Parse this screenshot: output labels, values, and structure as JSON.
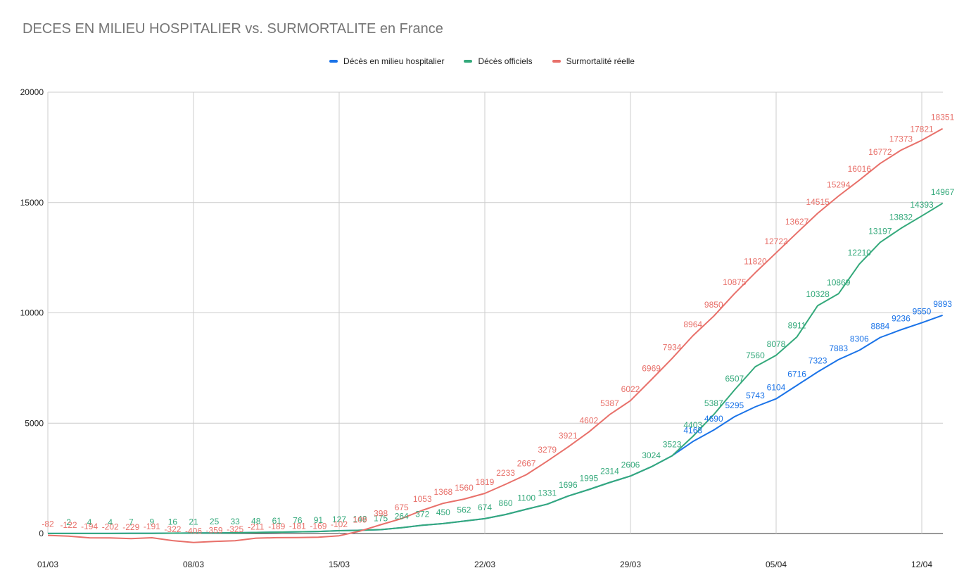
{
  "chart_data": {
    "type": "line",
    "title": "DECES EN MILIEU HOSPITALIER vs. SURMORTALITE en France",
    "ylim": [
      -500,
      20000
    ],
    "yticks": [
      "20000",
      "15000",
      "10000",
      "5000",
      "0"
    ],
    "ytick_values": [
      20000,
      15000,
      10000,
      5000,
      0
    ],
    "xticks": [
      "01/03",
      "08/03",
      "15/03",
      "22/03",
      "29/03",
      "05/04",
      "12/04"
    ],
    "xtick_index": [
      0,
      7,
      14,
      21,
      28,
      35,
      42
    ],
    "grid": true,
    "legend_position": "top",
    "x": [
      "01/03",
      "02/03",
      "03/03",
      "04/03",
      "05/03",
      "06/03",
      "07/03",
      "08/03",
      "09/03",
      "10/03",
      "11/03",
      "12/03",
      "13/03",
      "14/03",
      "15/03",
      "16/03",
      "17/03",
      "18/03",
      "19/03",
      "20/03",
      "21/03",
      "22/03",
      "23/03",
      "24/03",
      "25/03",
      "26/03",
      "27/03",
      "28/03",
      "29/03",
      "30/03",
      "31/03",
      "01/04",
      "02/04",
      "03/04",
      "04/04",
      "05/04",
      "06/04",
      "07/04",
      "08/04",
      "09/04",
      "10/04",
      "11/04",
      "12/04",
      "13/04"
    ],
    "series": [
      {
        "name": "Décès en milieu hospitalier",
        "color": "#1a73e8",
        "labeled_from": 31,
        "values": [
          2,
          2,
          4,
          4,
          7,
          9,
          16,
          21,
          25,
          33,
          48,
          61,
          76,
          91,
          127,
          148,
          175,
          264,
          372,
          450,
          562,
          674,
          860,
          1100,
          1331,
          1696,
          1995,
          2314,
          2606,
          3024,
          3523,
          4168,
          4690,
          5295,
          5743,
          6104,
          6716,
          7323,
          7883,
          8306,
          8884,
          9236,
          9550,
          9893
        ]
      },
      {
        "name": "Décès officiels",
        "color": "#34a97b",
        "labeled_from": 0,
        "values": [
          2,
          2,
          4,
          4,
          7,
          9,
          16,
          21,
          25,
          33,
          48,
          61,
          76,
          91,
          127,
          148,
          175,
          264,
          372,
          450,
          562,
          674,
          860,
          1100,
          1331,
          1696,
          1995,
          2314,
          2606,
          3024,
          3523,
          4403,
          5387,
          6507,
          7560,
          8078,
          8911,
          10328,
          10869,
          12210,
          13197,
          13832,
          14393,
          14967
        ]
      },
      {
        "name": "Surmortalité réelle",
        "color": "#e8706a",
        "labeled_from": 0,
        "values": [
          -82,
          -122,
          -194,
          -202,
          -229,
          -191,
          -322,
          -406,
          -359,
          -325,
          -211,
          -189,
          -181,
          -169,
          -102,
          109,
          398,
          675,
          1053,
          1368,
          1560,
          1819,
          2233,
          2667,
          3279,
          3921,
          4602,
          5387,
          6022,
          6969,
          7934,
          8964,
          9850,
          10875,
          11820,
          12722,
          13627,
          14515,
          15294,
          16016,
          16772,
          17373,
          17821,
          18351
        ]
      }
    ]
  }
}
